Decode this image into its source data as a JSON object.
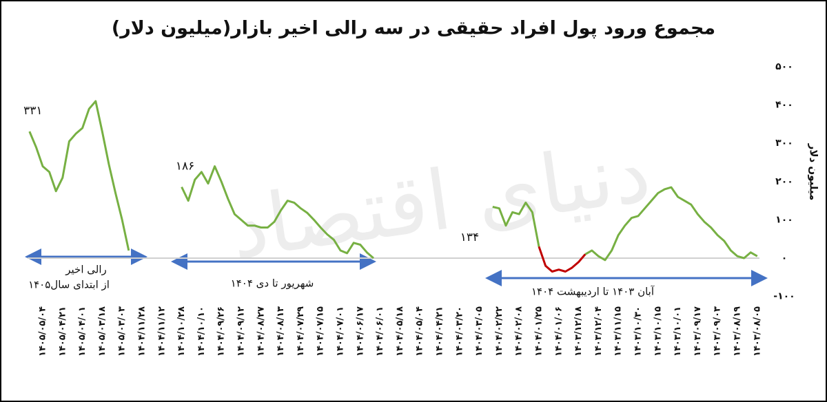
{
  "chart_data": {
    "type": "line",
    "title": "مجموع ورود پول افراد حقیقی در سه رالی اخیر بازار(میلیون دلار)",
    "y_axis_label": "میلیون دلار",
    "watermark": "دنیای اقتصاد",
    "categories": [
      null,
      null,
      "۱۴۰۵/۰۵/۰۴",
      null,
      null,
      "۱۴۰۵/۰۴/۲۱",
      null,
      null,
      "۱۴۰۵/۰۴/۰۱",
      null,
      null,
      "۱۴۰۵/۰۳/۱۸",
      null,
      null,
      "۱۴۰۵/۰۳/۰۳",
      null,
      null,
      "۱۴۰۴/۱۱/۲۸",
      null,
      null,
      "۱۴۰۴/۱۱/۱۲",
      null,
      null,
      "۱۴۰۴/۱۰/۲۸",
      null,
      null,
      "۱۴۰۴/۱۰/۱۰",
      null,
      null,
      "۱۴۰۴/۰۹/۲۶",
      null,
      null,
      "۱۴۰۴/۰۹/۱۲",
      null,
      null,
      "۱۴۰۴/۰۸/۲۷",
      null,
      null,
      "۱۴۰۴/۰۸/۱۳",
      null,
      null,
      "۱۴۰۴/۰۷/۲۹",
      null,
      null,
      "۱۴۰۴/۰۷/۱۵",
      null,
      null,
      "۱۴۰۴/۰۷/۰۱",
      null,
      null,
      "۱۴۰۴/۰۶/۱۷",
      null,
      null,
      "۱۴۰۴/۰۶/۰۱",
      null,
      null,
      "۱۴۰۴/۰۵/۱۸",
      null,
      null,
      "۱۴۰۴/۰۵/۰۴",
      null,
      null,
      "۱۴۰۴/۰۴/۲۱",
      null,
      null,
      "۱۴۰۴/۰۳/۲۰",
      null,
      null,
      "۱۴۰۴/۰۳/۰۵",
      null,
      null,
      "۱۴۰۴/۰۲/۲۲",
      null,
      null,
      "۱۴۰۴/۰۲/۰۸",
      null,
      null,
      "۱۴۰۴/۰۱/۲۵",
      null,
      null,
      "۱۴۰۴/۰۱/۰۶",
      null,
      null,
      "۱۴۰۳/۱۲/۱۸",
      null,
      null,
      "۱۴۰۳/۱۲/۰۴",
      null,
      null,
      "۱۴۰۳/۱۱/۱۵",
      null,
      null,
      "۱۴۰۳/۱۰/۳۰",
      null,
      null,
      "۱۴۰۳/۱۰/۱۵",
      null,
      null,
      "۱۴۰۳/۱۰/۰۱",
      null,
      null,
      "۱۴۰۳/۰۹/۱۷",
      null,
      null,
      "۱۴۰۳/۰۹/۰۳",
      null,
      null,
      "۱۴۰۳/۰۸/۱۹",
      null,
      null,
      "۱۴۰۳/۰۸/۰۵"
    ],
    "series": [
      {
        "color": "#77b043",
        "values": [
          331,
          290,
          240,
          225,
          175,
          210,
          305,
          325,
          340,
          390,
          410,
          330,
          245,
          170,
          100,
          20,
          null,
          null,
          null,
          null,
          null,
          null,
          null,
          186,
          150,
          205,
          225,
          195,
          240,
          200,
          155,
          115,
          100,
          85,
          85,
          80,
          80,
          95,
          125,
          150,
          145,
          130,
          118,
          100,
          80,
          62,
          48,
          20,
          13,
          40,
          35,
          15,
          0,
          null,
          null,
          null,
          null,
          null,
          null,
          null,
          null,
          null,
          null,
          null,
          null,
          null,
          null,
          null,
          null,
          null,
          134,
          130,
          85,
          120,
          115,
          145,
          120,
          30,
          null,
          null,
          null,
          null,
          null,
          null,
          10,
          20,
          5,
          -5,
          20,
          60,
          85,
          105,
          110,
          130,
          150,
          170,
          180,
          185,
          160,
          150,
          140,
          115,
          95,
          80,
          60,
          45,
          20,
          5,
          0,
          15,
          5
        ],
        "value_labels": [
          "۳۳۱",
          null,
          null,
          null,
          null,
          null,
          null,
          null,
          null,
          null,
          null,
          null,
          null,
          null,
          null,
          null,
          null,
          null,
          null,
          null,
          null,
          null,
          null,
          "۱۸۶",
          null,
          null,
          null,
          null,
          null,
          null,
          null,
          null,
          null,
          null,
          null,
          null,
          null,
          null,
          null,
          null,
          null,
          null,
          null,
          null,
          null,
          null,
          null,
          null,
          null,
          null,
          null,
          null,
          null,
          null,
          null,
          null,
          null,
          null,
          null,
          null,
          null,
          null,
          null,
          null,
          null,
          null,
          "۱۳۴",
          null,
          null,
          null,
          null,
          null,
          null,
          null,
          null,
          null,
          null,
          null,
          null,
          null,
          null,
          null,
          null,
          null,
          null,
          null,
          null,
          null,
          null,
          null,
          null,
          null,
          null,
          null,
          null,
          null,
          null,
          null,
          null,
          null,
          null,
          null,
          null,
          null,
          null,
          null
        ]
      },
      {
        "color": "#c00000",
        "values": [
          null,
          null,
          null,
          null,
          null,
          null,
          null,
          null,
          null,
          null,
          null,
          null,
          null,
          null,
          null,
          null,
          null,
          null,
          null,
          null,
          null,
          null,
          null,
          null,
          null,
          null,
          null,
          null,
          null,
          null,
          null,
          null,
          null,
          null,
          null,
          null,
          null,
          null,
          null,
          null,
          null,
          null,
          null,
          null,
          null,
          null,
          null,
          null,
          null,
          null,
          null,
          null,
          null,
          null,
          null,
          null,
          null,
          null,
          null,
          null,
          null,
          null,
          null,
          null,
          null,
          null,
          null,
          null,
          null,
          null,
          null,
          null,
          null,
          null,
          null,
          null,
          null,
          30,
          -20,
          -35,
          -30,
          -35,
          -25,
          -10,
          10,
          null,
          null,
          null,
          null,
          null,
          null,
          null,
          null,
          null,
          null,
          null,
          null,
          null,
          null,
          null,
          null,
          null,
          null,
          null,
          null,
          null,
          null,
          null,
          null,
          null,
          null
        ]
      }
    ],
    "annotations": [
      "رالی اخیر",
      "از ابتدای سال۱۴۰۵",
      "شهریور تا دی ۱۴۰۴",
      "آبان ۱۴۰۳ تا اردیبهشت ۱۴۰۴"
    ],
    "ylim": [
      -100,
      500
    ],
    "yticks": [
      {
        "value": -100,
        "label": "-۱۰۰"
      },
      {
        "value": 0,
        "label": "۰"
      },
      {
        "value": 100,
        "label": "۱۰۰"
      },
      {
        "value": 200,
        "label": "۲۰۰"
      },
      {
        "value": 300,
        "label": "۳۰۰"
      },
      {
        "value": 400,
        "label": "۴۰۰"
      },
      {
        "value": 500,
        "label": "۵۰۰"
      }
    ]
  }
}
